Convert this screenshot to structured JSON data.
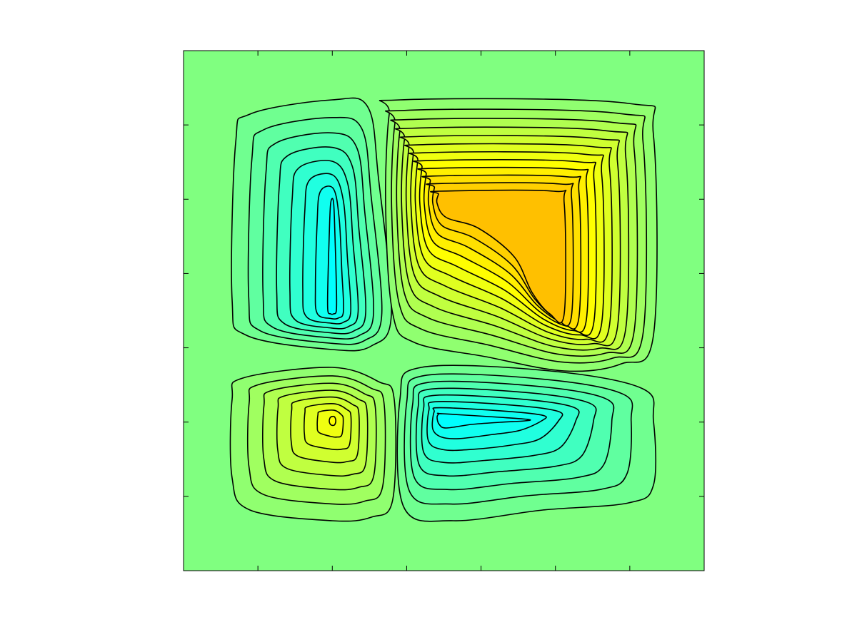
{
  "chart_data": {
    "type": "contour",
    "background": "#80ff80",
    "low_colors": [
      "#70ff90",
      "#60ffa0",
      "#50ffb0",
      "#40ffc0",
      "#30ffd0",
      "#20ffe0",
      "#10fff0",
      "#00ffff"
    ],
    "high_colors": [
      "#90ff70",
      "#a0ff60",
      "#b0ff50",
      "#c0ff40",
      "#d0ff30",
      "#e0ff20",
      "#f0ff10",
      "#ffff00",
      "#fff000",
      "#ffe000",
      "#ffd000",
      "#ffc000"
    ],
    "line_color": "#000000"
  }
}
